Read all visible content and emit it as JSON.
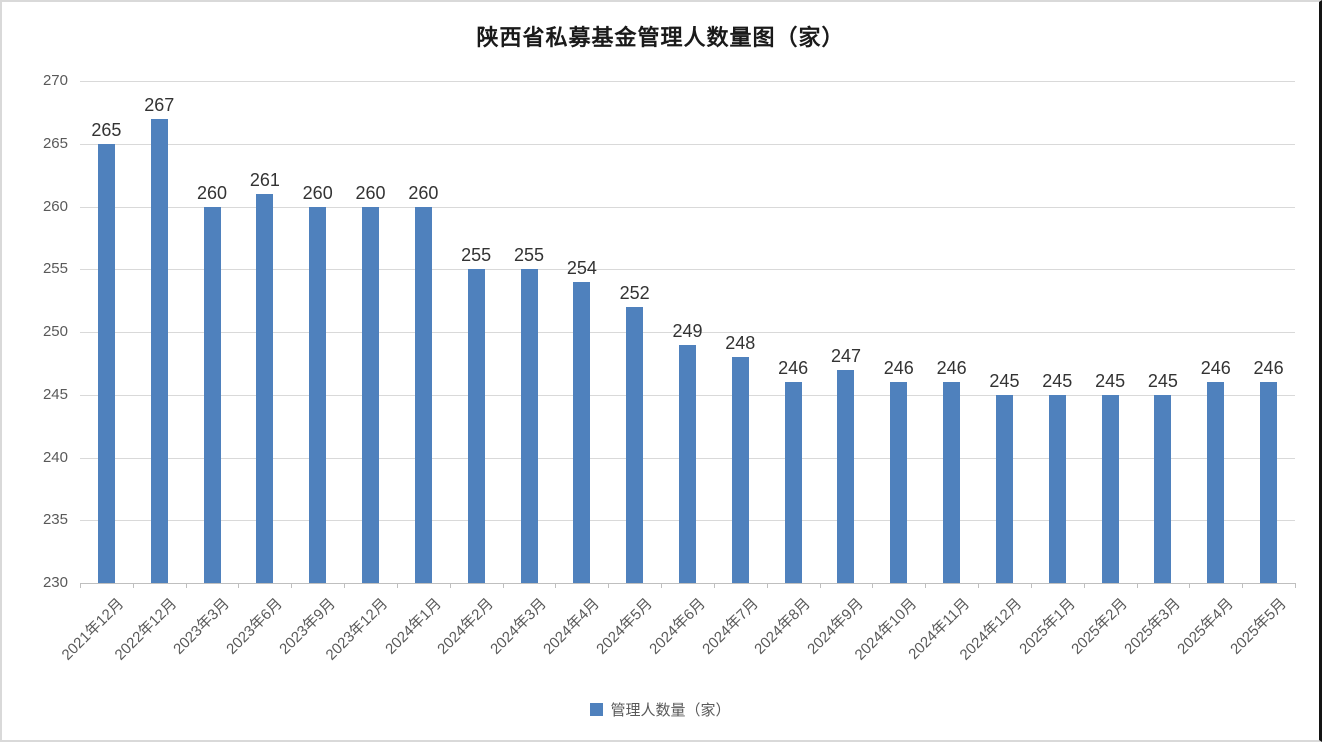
{
  "chart_data": {
    "type": "bar",
    "title": "陕西省私募基金管理人数量图（家）",
    "legend_label": "管理人数量（家）",
    "legend_position": "bottom",
    "categories": [
      "2021年12月",
      "2022年12月",
      "2023年3月",
      "2023年6月",
      "2023年9月",
      "2023年12月",
      "2024年1月",
      "2024年2月",
      "2024年3月",
      "2024年4月",
      "2024年5月",
      "2024年6月",
      "2024年7月",
      "2024年8月",
      "2024年9月",
      "2024年10月",
      "2024年11月",
      "2024年12月",
      "2025年1月",
      "2025年2月",
      "2025年3月",
      "2025年4月",
      "2025年5月"
    ],
    "values": [
      265,
      267,
      260,
      261,
      260,
      260,
      260,
      255,
      255,
      254,
      252,
      249,
      248,
      246,
      247,
      246,
      246,
      245,
      245,
      245,
      245,
      246,
      246
    ],
    "ylim": [
      230,
      270
    ],
    "ytick_step": 5,
    "yticks": [
      230,
      235,
      240,
      245,
      250,
      255,
      260,
      265,
      270
    ],
    "grid": true,
    "bar_color": "#4F81BD",
    "data_label_color": "#333333",
    "axis_label_color": "#595959",
    "gridline_color": "#d9d9d9",
    "axis_line_color": "#bfbfbf"
  }
}
